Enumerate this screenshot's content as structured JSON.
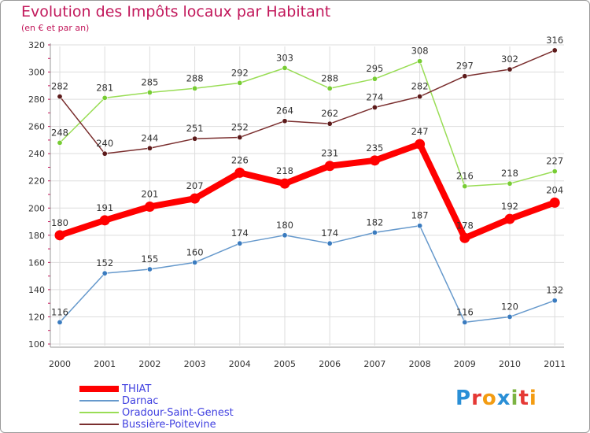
{
  "chart_data": {
    "type": "line",
    "title": "Evolution des Impôts locaux par Habitant",
    "subtitle": "(en € et par an)",
    "xlabel": "",
    "ylabel": "",
    "x": [
      "2000",
      "2001",
      "2002",
      "2003",
      "2004",
      "2005",
      "2006",
      "2007",
      "2008",
      "2009",
      "2010",
      "2011"
    ],
    "ylim": [
      100,
      320
    ],
    "yticks": [
      100,
      120,
      140,
      160,
      180,
      200,
      220,
      240,
      260,
      280,
      300,
      320
    ],
    "grid": true,
    "legend_position": "bottom-left",
    "series": [
      {
        "name": "THIAT",
        "values": [
          180,
          191,
          201,
          207,
          226,
          218,
          231,
          235,
          247,
          178,
          192,
          204
        ],
        "color": "#ff0000",
        "emphasis": true
      },
      {
        "name": "Darnac",
        "values": [
          116,
          152,
          155,
          160,
          174,
          180,
          174,
          182,
          187,
          116,
          120,
          132
        ],
        "color": "#6699cc",
        "marker": "#3a7bbf"
      },
      {
        "name": "Oradour-Saint-Genest",
        "values": [
          248,
          281,
          285,
          288,
          292,
          303,
          288,
          295,
          308,
          216,
          218,
          227
        ],
        "color": "#99dd55",
        "marker": "#77cc33"
      },
      {
        "name": "Bussière-Poitevine",
        "values": [
          282,
          240,
          244,
          251,
          252,
          264,
          262,
          274,
          282,
          297,
          302,
          316
        ],
        "color": "#7a2e2e",
        "marker": "#5c1a1a"
      }
    ]
  },
  "colors": {
    "title": "#c2185b",
    "axis_text": "#333333",
    "grid": "#dddddd",
    "legend_text": "#4040e0"
  },
  "logo": {
    "letters": [
      "P",
      "r",
      "o",
      "x",
      "i",
      "t",
      "i"
    ],
    "colors": [
      "#2a8fd6",
      "#e53935",
      "#f39c12",
      "#2a8fd6",
      "#7cb342",
      "#e53935",
      "#f39c12"
    ]
  }
}
